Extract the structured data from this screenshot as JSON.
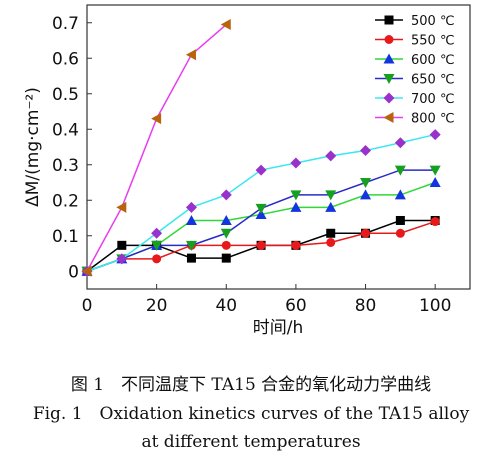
{
  "chart_data": {
    "type": "line",
    "x_label": "时间/h",
    "y_label": "ΔM/(mg·cm⁻²)",
    "x": [
      0,
      10,
      20,
      30,
      40,
      50,
      60,
      70,
      80,
      90,
      100
    ],
    "series": [
      {
        "name": "500 ℃",
        "color": "#000000",
        "marker_color": "#000000",
        "marker": "square",
        "values": [
          0,
          0.073,
          0.073,
          0.037,
          0.037,
          0.073,
          0.073,
          0.107,
          0.107,
          0.143,
          0.143
        ]
      },
      {
        "name": "550 ℃",
        "color": "#e8191a",
        "marker_color": "#e8191a",
        "marker": "circle",
        "values": [
          0,
          0.035,
          0.035,
          0.073,
          0.073,
          0.073,
          0.073,
          0.081,
          0.107,
          0.107,
          0.14
        ]
      },
      {
        "name": "600 ℃",
        "color": "#2fd838",
        "marker_color": "#1235e0",
        "marker": "triangle-up",
        "values": [
          0,
          0.035,
          0.073,
          0.143,
          0.143,
          0.16,
          0.18,
          0.18,
          0.215,
          0.215,
          0.25
        ]
      },
      {
        "name": "650 ℃",
        "color": "#2a2ac8",
        "marker_color": "#15a020",
        "marker": "triangle-down",
        "values": [
          0,
          0.035,
          0.073,
          0.073,
          0.107,
          0.177,
          0.215,
          0.215,
          0.25,
          0.285,
          0.285
        ]
      },
      {
        "name": "700 ℃",
        "color": "#3ae8f0",
        "marker_color": "#9932cc",
        "marker": "diamond",
        "values": [
          0,
          0.035,
          0.107,
          0.18,
          0.215,
          0.285,
          0.305,
          0.325,
          0.34,
          0.362,
          0.385
        ]
      },
      {
        "name": "800 ℃",
        "color": "#e83cf0",
        "marker_color": "#b8640c",
        "marker": "triangle-left",
        "values": [
          0,
          0.18,
          0.43,
          0.61,
          0.695,
          null,
          null,
          null,
          null,
          null,
          null
        ]
      }
    ],
    "xlim": [
      0,
      110
    ],
    "xticks": [
      0,
      20,
      40,
      60,
      80,
      100
    ],
    "ylim": [
      -0.05,
      0.75
    ],
    "yticks": [
      0,
      0.1,
      0.2,
      0.3,
      0.4,
      0.5,
      0.6,
      0.7
    ],
    "legend": "top-right",
    "caption": [
      "图 1　不同温度下 TA15 合金的氧化动力学曲线",
      "Fig. 1　Oxidation kinetics curves of the TA15 alloy",
      "at different temperatures"
    ]
  }
}
